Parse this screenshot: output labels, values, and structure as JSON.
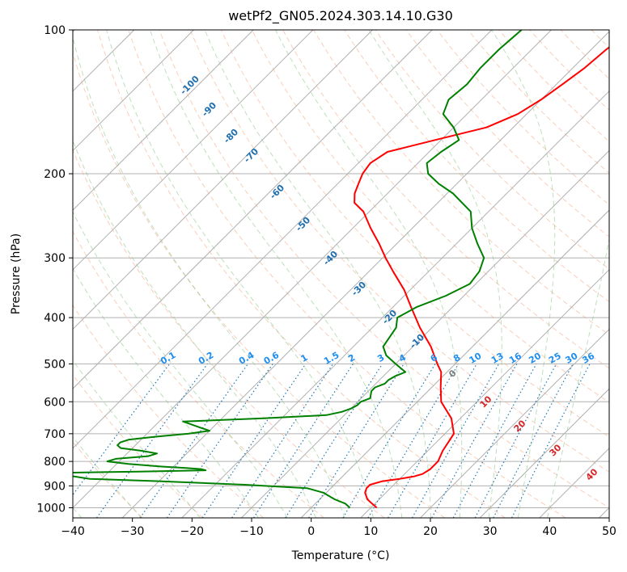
{
  "chart_data": {
    "type": "line",
    "subtype": "skew-t log-p",
    "title": "wetPf2_GN05.2024.303.14.10.G30",
    "xlabel": "Temperature (°C)",
    "ylabel": "Pressure (hPa)",
    "xlim": [
      -40,
      50
    ],
    "ylim": [
      1050,
      100
    ],
    "y_scale": "log",
    "grid": true,
    "x_ticks": [
      -40,
      -30,
      -20,
      -10,
      0,
      10,
      20,
      30,
      40,
      50
    ],
    "y_ticks": [
      100,
      200,
      300,
      400,
      500,
      600,
      700,
      800,
      900,
      1000
    ],
    "colors": {
      "temperature": "#ff0000",
      "dewpoint": "#008000",
      "isotherm": "#b0b0b0",
      "dry_adiabat": "#f4a582",
      "moist_adiabat": "#7fbf7b",
      "mixing_ratio": "#1f77b4",
      "background_curve": "#d2b48c"
    },
    "series": [
      {
        "key": "temperature",
        "p": [
          1000,
          980,
          960,
          930,
          910,
          895,
          880,
          870,
          860,
          850,
          830,
          800,
          760,
          700,
          650,
          600,
          560,
          520,
          500,
          460,
          420,
          380,
          350,
          320,
          300,
          280,
          260,
          240,
          230,
          220,
          210,
          200,
          190,
          180,
          170,
          160,
          150,
          140,
          130,
          120,
          110,
          100
        ],
        "t": [
          11,
          9.5,
          8,
          6.5,
          6,
          6,
          7.5,
          10,
          12,
          13,
          13.5,
          13.5,
          12.5,
          11.5,
          8.5,
          4,
          1.5,
          -1,
          -3,
          -7,
          -12,
          -17,
          -21,
          -26,
          -29.5,
          -33,
          -37,
          -41,
          -44,
          -45.5,
          -46.5,
          -47.5,
          -48,
          -47,
          -41,
          -34.5,
          -31.5,
          -30,
          -29,
          -28,
          -27.5,
          -26.5
        ]
      },
      {
        "key": "dewpoint",
        "p": [
          1000,
          980,
          960,
          930,
          910,
          895,
          880,
          870,
          860,
          855,
          850,
          845,
          840,
          835,
          830,
          825,
          820,
          810,
          800,
          790,
          780,
          770,
          760,
          750,
          740,
          730,
          720,
          710,
          700,
          690,
          680,
          670,
          660,
          650,
          640,
          630,
          620,
          610,
          600,
          590,
          580,
          570,
          560,
          550,
          540,
          530,
          520,
          500,
          480,
          460,
          440,
          420,
          400,
          380,
          360,
          340,
          320,
          300,
          280,
          260,
          240,
          220,
          210,
          200,
          190,
          180,
          170,
          160,
          150,
          140,
          130,
          120,
          110,
          100
        ],
        "t": [
          6.5,
          5,
          2.5,
          -0.5,
          -4,
          -15,
          -30,
          -42,
          -45,
          -48,
          -50,
          -48,
          -35,
          -24,
          -25,
          -28,
          -32,
          -38,
          -42,
          -41,
          -36,
          -35,
          -38,
          -42,
          -43,
          -43,
          -42,
          -38,
          -33,
          -30,
          -32,
          -34,
          -36,
          -23,
          -13,
          -11,
          -10,
          -9.5,
          -9.5,
          -8.5,
          -9,
          -9.5,
          -9.5,
          -8.5,
          -8.5,
          -8,
          -7,
          -10,
          -13,
          -15,
          -15.5,
          -16,
          -17.5,
          -16,
          -13,
          -11,
          -11.5,
          -13,
          -16.5,
          -20,
          -23,
          -29,
          -33,
          -36.5,
          -38.5,
          -38,
          -37,
          -40,
          -44,
          -45.5,
          -45,
          -45.5,
          -45.5,
          -45
        ]
      }
    ],
    "mixing_ratio_labels": [
      "0.1",
      "0.2",
      "0.4",
      "0.6",
      "1",
      "1.5",
      "2",
      "3",
      "4",
      "6",
      "8",
      "10",
      "13",
      "16",
      "20",
      "25",
      "30",
      "36"
    ],
    "moist_adiabat_labels": [
      "-100",
      "-90",
      "-80",
      "-70",
      "-60",
      "-50",
      "-40",
      "-30",
      "-20",
      "-10",
      "0",
      "10",
      "20",
      "30",
      "40"
    ],
    "moist_adiabat_values": [
      -100,
      -90,
      -80,
      -70,
      -60,
      -50,
      -40,
      -30,
      -20,
      -10,
      0,
      10,
      20,
      30,
      40
    ]
  }
}
